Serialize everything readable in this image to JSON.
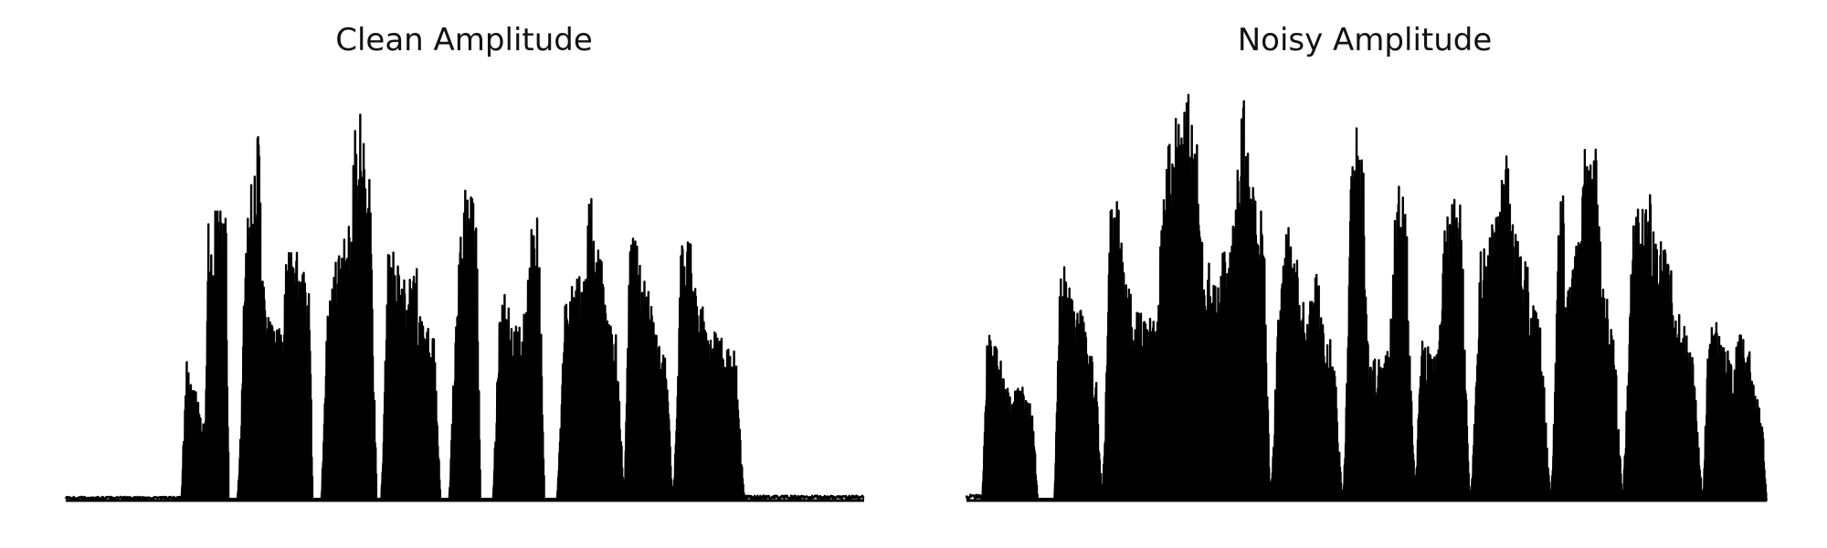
{
  "chart_data": [
    {
      "type": "line",
      "title": "Clean Amplitude",
      "xlabel": "",
      "ylabel": "",
      "axes_visible": false,
      "grid": false,
      "line_color": "#000000",
      "ylim": [
        0,
        1.0
      ],
      "x_range": [
        0,
        1
      ],
      "segments": [
        {
          "type": "noise",
          "x0": 0.0,
          "x1": 0.145,
          "level": 0.005
        },
        {
          "type": "burst",
          "x0": 0.145,
          "x1": 0.2,
          "peaks": [
            0.41,
            0.28,
            0.2,
            0.17,
            0.12
          ],
          "peak_at": 0.05,
          "mean": 0.18
        },
        {
          "type": "burst",
          "x0": 0.175,
          "x1": 0.205,
          "peaks": [
            0.7
          ],
          "peak_at": 0.5,
          "mean": 0.38
        },
        {
          "type": "gap",
          "x0": 0.205,
          "x1": 0.215
        },
        {
          "type": "burst",
          "x0": 0.215,
          "x1": 0.3,
          "peaks": [
            0.4,
            0.68,
            0.9,
            0.46,
            0.42,
            0.4,
            0.37,
            0.3
          ],
          "peak_at": 0.3,
          "mean": 0.26
        },
        {
          "type": "burst",
          "x0": 0.27,
          "x1": 0.31,
          "peaks": [
            0.64,
            0.6,
            0.55
          ],
          "peak_at": 0.4,
          "mean": 0.33
        },
        {
          "type": "gap",
          "x0": 0.31,
          "x1": 0.32
        },
        {
          "type": "burst",
          "x0": 0.32,
          "x1": 0.39,
          "peaks": [
            0.45,
            0.53,
            0.61,
            0.7,
            1.0,
            0.78,
            0.74
          ],
          "peak_at": 0.6,
          "mean": 0.42
        },
        {
          "type": "gap",
          "x0": 0.39,
          "x1": 0.395
        },
        {
          "type": "burst",
          "x0": 0.395,
          "x1": 0.47,
          "peaks": [
            0.55,
            0.66,
            0.58,
            0.52,
            0.57,
            0.44,
            0.42,
            0.4
          ],
          "peak_at": 0.3,
          "mean": 0.3
        },
        {
          "type": "gap",
          "x0": 0.47,
          "x1": 0.48
        },
        {
          "type": "burst",
          "x0": 0.48,
          "x1": 0.52,
          "peaks": [
            0.21,
            0.77,
            0.72
          ],
          "peak_at": 0.6,
          "mean": 0.35
        },
        {
          "type": "gap",
          "x0": 0.52,
          "x1": 0.535
        },
        {
          "type": "burst",
          "x0": 0.535,
          "x1": 0.6,
          "peaks": [
            0.46,
            0.5,
            0.43,
            0.45,
            0.7,
            0.73
          ],
          "peak_at": 0.8,
          "mean": 0.3
        },
        {
          "type": "gap",
          "x0": 0.6,
          "x1": 0.615
        },
        {
          "type": "burst",
          "x0": 0.615,
          "x1": 0.7,
          "peaks": [
            0.42,
            0.5,
            0.52,
            0.57,
            0.76,
            0.6,
            0.48,
            0.4,
            0.36
          ],
          "peak_at": 0.45,
          "mean": 0.32
        },
        {
          "type": "burst",
          "x0": 0.7,
          "x1": 0.76,
          "peaks": [
            0.7,
            0.66,
            0.55,
            0.46,
            0.36,
            0.34
          ],
          "peak_at": 0.2,
          "mean": 0.28
        },
        {
          "type": "burst",
          "x0": 0.76,
          "x1": 0.85,
          "peaks": [
            0.42,
            0.64,
            0.62,
            0.48,
            0.43,
            0.4,
            0.38,
            0.36,
            0.3
          ],
          "peak_at": 0.35,
          "mean": 0.26
        },
        {
          "type": "noise",
          "x0": 0.85,
          "x1": 1.0,
          "level": 0.008
        }
      ]
    },
    {
      "type": "line",
      "title": "Noisy Amplitude",
      "xlabel": "",
      "ylabel": "",
      "axes_visible": false,
      "grid": false,
      "line_color": "#000000",
      "ylim": [
        0,
        1.0
      ],
      "x_range": [
        0,
        1
      ],
      "segments": [
        {
          "type": "noise",
          "x0": 0.0,
          "x1": 0.02,
          "level": 0.01
        },
        {
          "type": "burst",
          "x0": 0.02,
          "x1": 0.07,
          "peaks": [
            0.38,
            0.4,
            0.36,
            0.28,
            0.22,
            0.15
          ],
          "peak_at": 0.2,
          "mean": 0.18
        },
        {
          "type": "burst",
          "x0": 0.055,
          "x1": 0.09,
          "peaks": [
            0.26,
            0.28,
            0.25,
            0.1
          ],
          "peak_at": 0.4,
          "mean": 0.14
        },
        {
          "type": "burst",
          "x0": 0.11,
          "x1": 0.17,
          "peaks": [
            0.55,
            0.58,
            0.54,
            0.45,
            0.46,
            0.4,
            0.3,
            0.2
          ],
          "peak_at": 0.25,
          "mean": 0.22
        },
        {
          "type": "burst",
          "x0": 0.17,
          "x1": 0.26,
          "peaks": [
            0.7,
            0.75,
            0.72,
            0.52,
            0.48,
            0.45,
            0.44,
            0.42,
            0.36,
            0.3
          ],
          "peak_at": 0.15,
          "mean": 0.3
        },
        {
          "type": "burst",
          "x0": 0.23,
          "x1": 0.33,
          "peaks": [
            0.7,
            0.62,
            0.88,
            0.95,
            1.0,
            0.9,
            0.62,
            0.55,
            0.5,
            0.45
          ],
          "peak_at": 0.45,
          "mean": 0.38
        },
        {
          "type": "burst",
          "x0": 0.31,
          "x1": 0.38,
          "peaks": [
            0.55,
            0.6,
            0.68,
            0.98,
            0.76,
            0.7,
            0.64
          ],
          "peak_at": 0.55,
          "mean": 0.35
        },
        {
          "type": "burst",
          "x0": 0.38,
          "x1": 0.47,
          "peaks": [
            0.5,
            0.56,
            0.66,
            0.58,
            0.44,
            0.55,
            0.45,
            0.4,
            0.35
          ],
          "peak_at": 0.3,
          "mean": 0.27
        },
        {
          "type": "burst",
          "x0": 0.47,
          "x1": 0.56,
          "peaks": [
            0.42,
            0.88,
            0.92,
            0.36,
            0.34,
            0.36,
            0.76,
            0.76,
            0.72
          ],
          "peak_at": 0.2,
          "mean": 0.3
        },
        {
          "type": "burst",
          "x0": 0.56,
          "x1": 0.63,
          "peaks": [
            0.4,
            0.38,
            0.36,
            0.74,
            0.72,
            0.3
          ],
          "peak_at": 0.55,
          "mean": 0.26
        },
        {
          "type": "burst",
          "x0": 0.63,
          "x1": 0.73,
          "peaks": [
            0.52,
            0.6,
            0.65,
            0.7,
            0.85,
            0.7,
            0.6,
            0.5,
            0.42,
            0.38
          ],
          "peak_at": 0.45,
          "mean": 0.32
        },
        {
          "type": "burst",
          "x0": 0.73,
          "x1": 0.82,
          "peaks": [
            0.54,
            0.8,
            0.56,
            0.62,
            0.88,
            0.85,
            0.5,
            0.42,
            0.38
          ],
          "peak_at": 0.5,
          "mean": 0.3
        },
        {
          "type": "burst",
          "x0": 0.82,
          "x1": 0.92,
          "peaks": [
            0.62,
            0.72,
            0.7,
            0.74,
            0.65,
            0.62,
            0.46,
            0.42,
            0.34,
            0.3
          ],
          "peak_at": 0.3,
          "mean": 0.26
        },
        {
          "type": "burst",
          "x0": 0.92,
          "x1": 0.97,
          "peaks": [
            0.36,
            0.44,
            0.4,
            0.32,
            0.26
          ],
          "peak_at": 0.3,
          "mean": 0.2
        },
        {
          "type": "burst",
          "x0": 0.955,
          "x1": 1.0,
          "peaks": [
            0.32,
            0.4,
            0.36,
            0.26,
            0.18
          ],
          "peak_at": 0.3,
          "mean": 0.18
        }
      ]
    }
  ]
}
